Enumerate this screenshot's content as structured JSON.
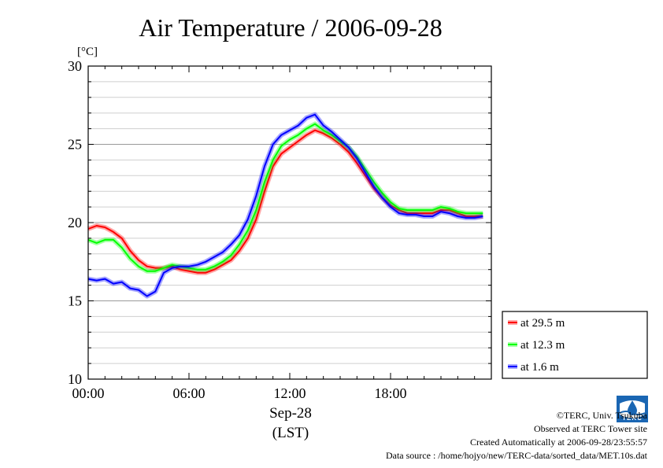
{
  "chart_data": {
    "type": "line",
    "title": "Air Temperature / 2006-09-28",
    "ylabel": "[°C]",
    "xlabel_date": "Sep-28",
    "xlabel_tz": "(LST)",
    "ylim": [
      10,
      30
    ],
    "yticks": [
      "10",
      "15",
      "20",
      "25",
      "30"
    ],
    "xlim": [
      0,
      24
    ],
    "xticks": [
      {
        "value": 0,
        "label": "00:00"
      },
      {
        "value": 6,
        "label": "06:00"
      },
      {
        "value": 12,
        "label": "12:00"
      },
      {
        "value": 18,
        "label": "18:00"
      }
    ],
    "grid": "horizontal",
    "legend_position": "bottom-right-outside",
    "x": [
      0.0,
      0.5,
      1.0,
      1.5,
      2.0,
      2.5,
      3.0,
      3.5,
      4.0,
      4.5,
      5.0,
      5.5,
      6.0,
      6.5,
      7.0,
      7.5,
      8.0,
      8.5,
      9.0,
      9.5,
      10.0,
      10.5,
      11.0,
      11.5,
      12.0,
      12.5,
      13.0,
      13.5,
      14.0,
      14.5,
      15.0,
      15.5,
      16.0,
      16.5,
      17.0,
      17.5,
      18.0,
      18.5,
      19.0,
      19.5,
      20.0,
      20.5,
      21.0,
      21.5,
      22.0,
      22.5,
      23.0,
      23.5
    ],
    "series": [
      {
        "name": "at 29.5 m",
        "color": "#ff0000",
        "values": [
          19.6,
          19.8,
          19.7,
          19.4,
          19.0,
          18.2,
          17.6,
          17.2,
          17.1,
          17.1,
          17.2,
          17.0,
          16.9,
          16.8,
          16.8,
          17.0,
          17.3,
          17.6,
          18.2,
          19.0,
          20.2,
          22.0,
          23.6,
          24.4,
          24.8,
          25.2,
          25.6,
          25.9,
          25.7,
          25.4,
          25.0,
          24.5,
          23.8,
          23.0,
          22.2,
          21.6,
          21.1,
          20.8,
          20.6,
          20.6,
          20.6,
          20.6,
          20.8,
          20.8,
          20.6,
          20.4,
          20.4,
          20.4
        ]
      },
      {
        "name": "at 12.3 m",
        "color": "#00ff00",
        "values": [
          18.9,
          18.7,
          18.9,
          18.9,
          18.4,
          17.7,
          17.2,
          16.9,
          16.9,
          17.1,
          17.3,
          17.2,
          17.1,
          17.0,
          17.0,
          17.2,
          17.5,
          17.9,
          18.6,
          19.5,
          20.8,
          22.6,
          24.0,
          24.9,
          25.3,
          25.6,
          26.0,
          26.3,
          25.9,
          25.6,
          25.2,
          24.8,
          24.2,
          23.4,
          22.6,
          21.9,
          21.3,
          20.9,
          20.8,
          20.8,
          20.8,
          20.8,
          21.0,
          20.9,
          20.7,
          20.6,
          20.6,
          20.6
        ]
      },
      {
        "name": "at 1.6 m",
        "color": "#0000ff",
        "values": [
          16.4,
          16.3,
          16.4,
          16.1,
          16.2,
          15.8,
          15.7,
          15.3,
          15.6,
          16.8,
          17.1,
          17.2,
          17.2,
          17.3,
          17.5,
          17.8,
          18.1,
          18.6,
          19.2,
          20.2,
          21.7,
          23.6,
          25.0,
          25.6,
          25.9,
          26.2,
          26.7,
          26.9,
          26.2,
          25.8,
          25.3,
          24.8,
          24.1,
          23.2,
          22.3,
          21.6,
          21.0,
          20.6,
          20.5,
          20.5,
          20.4,
          20.4,
          20.7,
          20.6,
          20.4,
          20.3,
          20.3,
          20.4
        ]
      }
    ]
  },
  "footer": {
    "copyright": "©TERC, Univ. Tsukuba",
    "observed": "Observed at TERC Tower site",
    "created": "Created Automatically at 2006-09-28/23:55:57",
    "source": "Data source : /home/hojyo/new/TERC-data/sorted_data/MET.10s.dat"
  },
  "logo": {
    "text": "TERC",
    "color": "#1a66b3",
    "icon": "terc-logo-icon"
  }
}
